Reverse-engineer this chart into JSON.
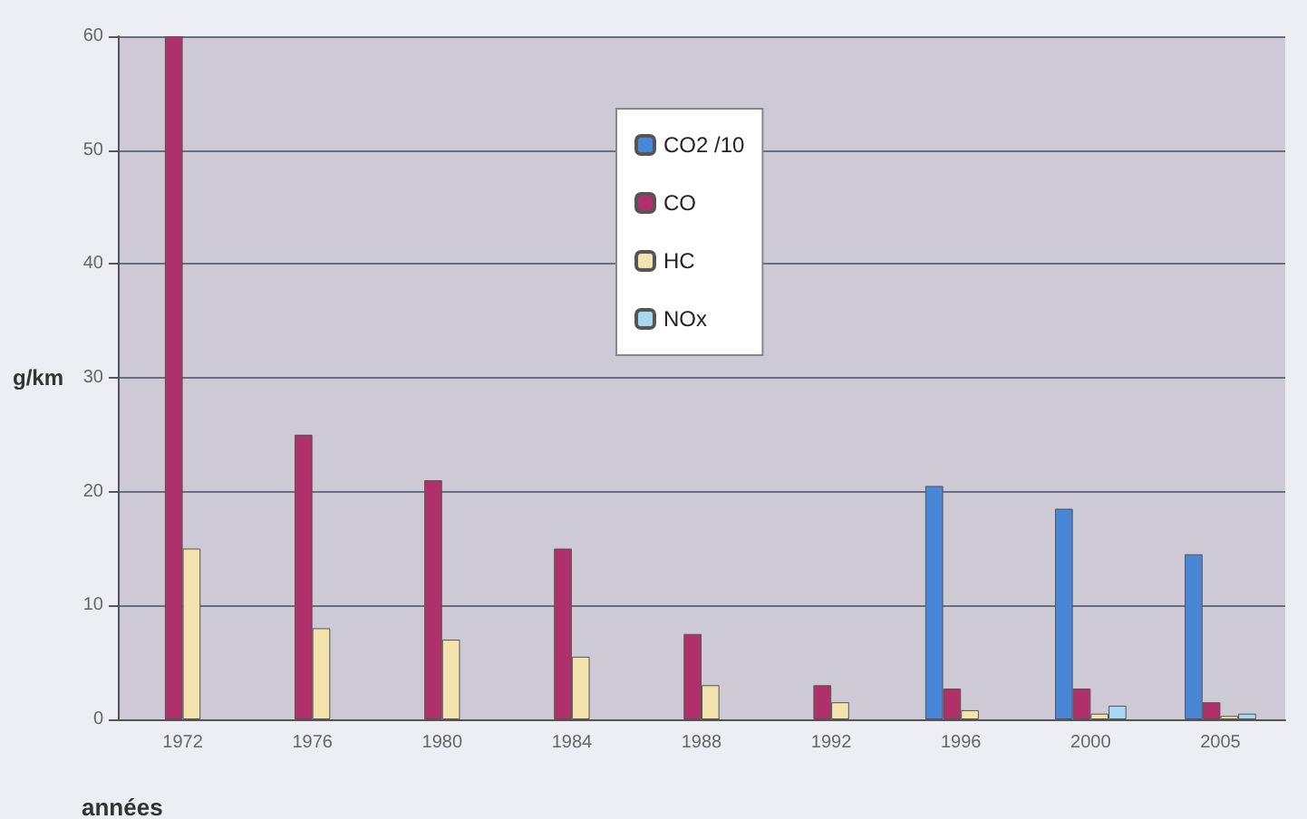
{
  "chart_data": {
    "type": "bar",
    "xlabel": "années",
    "ylabel": "g/km",
    "categories": [
      "1972",
      "1976",
      "1980",
      "1984",
      "1988",
      "1992",
      "1996",
      "2000",
      "2005"
    ],
    "series": [
      {
        "name": "CO2 /10",
        "color": "#4a86d6",
        "values": [
          null,
          null,
          null,
          null,
          null,
          null,
          20.5,
          18.5,
          14.5
        ]
      },
      {
        "name": "CO",
        "color": "#b0306a",
        "values": [
          60,
          25,
          21,
          15,
          7.5,
          3,
          2.7,
          2.7,
          1.5
        ]
      },
      {
        "name": "HC",
        "color": "#f3e3ad",
        "values": [
          15,
          8,
          7,
          5.5,
          3,
          1.5,
          0.8,
          0.5,
          0.3
        ]
      },
      {
        "name": "NOx",
        "color": "#a6d9ef",
        "values": [
          null,
          null,
          null,
          null,
          null,
          null,
          null,
          1.2,
          0.5
        ]
      }
    ],
    "ylim": [
      0,
      60
    ],
    "yticks": [
      0,
      10,
      20,
      30,
      40,
      50,
      60
    ],
    "grid": "y",
    "legend": "top"
  }
}
